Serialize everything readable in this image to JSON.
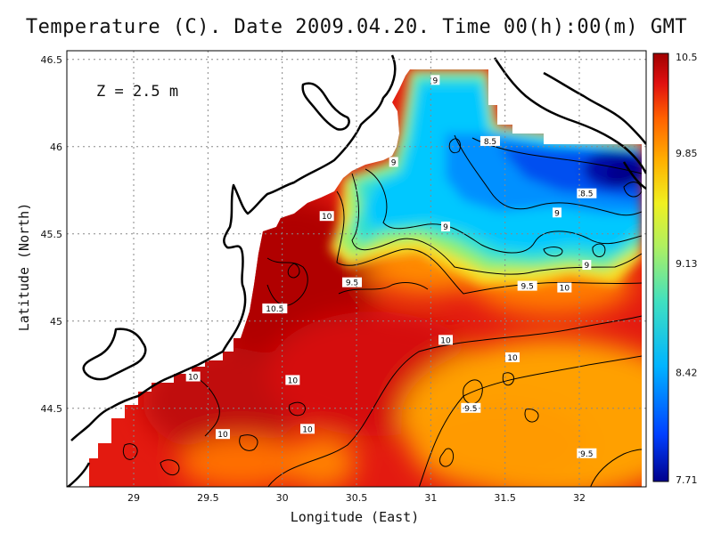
{
  "title": "Temperature (C). Date 2009.04.20. Time 00(h):00(m) GMT",
  "depth_label": "Z = 2.5 m",
  "x_axis": {
    "label": "Longitude (East)",
    "range": [
      28.55,
      32.45
    ],
    "ticks": [
      "29",
      "29.5",
      "30",
      "30.5",
      "31",
      "31.5",
      "32"
    ]
  },
  "y_axis": {
    "label": "Latitude (North)",
    "range": [
      44.05,
      46.55
    ],
    "ticks": [
      "44.5",
      "45",
      "45.5",
      "46",
      "46.5"
    ]
  },
  "colorbar": {
    "ticks": [
      "10.5",
      "9.85",
      "9.13",
      "8.42",
      "7.71"
    ],
    "min": 7.71,
    "max": 10.5,
    "colors": [
      "#00008c",
      "#0040ff",
      "#00b4ff",
      "#40e0c0",
      "#b0f060",
      "#f0f020",
      "#ffb000",
      "#ff6000",
      "#e01010",
      "#a00000"
    ]
  },
  "contour_labels": [
    {
      "text": "9",
      "lon": 31.03,
      "lat": 46.38
    },
    {
      "text": "8.5",
      "lon": 31.4,
      "lat": 46.03
    },
    {
      "text": "9",
      "lon": 30.75,
      "lat": 45.91
    },
    {
      "text": "8.5",
      "lon": 32.05,
      "lat": 45.73
    },
    {
      "text": "9",
      "lon": 31.85,
      "lat": 45.62
    },
    {
      "text": "10",
      "lon": 30.3,
      "lat": 45.6
    },
    {
      "text": "9",
      "lon": 31.1,
      "lat": 45.54
    },
    {
      "text": "9",
      "lon": 32.05,
      "lat": 45.32
    },
    {
      "text": "9.5",
      "lon": 30.47,
      "lat": 45.22
    },
    {
      "text": "9.5",
      "lon": 31.65,
      "lat": 45.2
    },
    {
      "text": "10",
      "lon": 31.9,
      "lat": 45.19
    },
    {
      "text": "10.5",
      "lon": 29.95,
      "lat": 45.07
    },
    {
      "text": "10",
      "lon": 31.1,
      "lat": 44.89
    },
    {
      "text": "10",
      "lon": 31.55,
      "lat": 44.79
    },
    {
      "text": "10",
      "lon": 29.4,
      "lat": 44.68
    },
    {
      "text": "10",
      "lon": 30.07,
      "lat": 44.66
    },
    {
      "text": "9.5",
      "lon": 31.27,
      "lat": 44.5
    },
    {
      "text": "10",
      "lon": 30.17,
      "lat": 44.38
    },
    {
      "text": "10",
      "lon": 29.6,
      "lat": 44.35
    },
    {
      "text": "9.5",
      "lon": 32.05,
      "lat": 44.24
    }
  ]
}
